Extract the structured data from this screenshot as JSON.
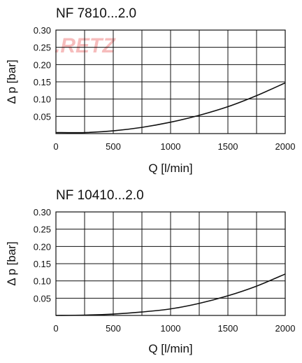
{
  "watermark": ".RETZ",
  "chart_data": [
    {
      "type": "line",
      "title": "NF 7810...2.0",
      "xlabel": "Q   [l/min]",
      "ylabel": "Δ p   [bar]",
      "xlim": [
        0,
        2000
      ],
      "ylim": [
        0,
        0.3
      ],
      "x_ticks": [
        0,
        500,
        1000,
        1500,
        2000
      ],
      "y_ticks": [
        0.05,
        0.1,
        0.15,
        0.2,
        0.25,
        0.3
      ],
      "x_tick_labels": [
        "0",
        "500",
        "1000",
        "1500",
        "2000"
      ],
      "y_tick_labels": [
        "0.05",
        "0.10",
        "0.15",
        "0.20",
        "0.25",
        "0.30"
      ],
      "x_grid": [
        0,
        250,
        500,
        750,
        1000,
        1250,
        1500,
        1750,
        2000
      ],
      "y_grid": [
        0,
        0.05,
        0.1,
        0.15,
        0.2,
        0.25,
        0.3
      ],
      "grid": true,
      "series": [
        {
          "x": [
            0,
            250,
            500,
            750,
            1000,
            1250,
            1500,
            1750,
            2000
          ],
          "y": [
            0.003,
            0.003,
            0.008,
            0.018,
            0.033,
            0.053,
            0.078,
            0.11,
            0.147
          ]
        }
      ]
    },
    {
      "type": "line",
      "title": "NF 10410...2.0",
      "xlabel": "Q   [l/min]",
      "ylabel": "Δ p   [bar]",
      "xlim": [
        0,
        2000
      ],
      "ylim": [
        0,
        0.3
      ],
      "x_ticks": [
        0,
        500,
        1000,
        1500,
        2000
      ],
      "y_ticks": [
        0.05,
        0.1,
        0.15,
        0.2,
        0.25,
        0.3
      ],
      "x_tick_labels": [
        "0",
        "500",
        "1000",
        "1500",
        "2000"
      ],
      "y_tick_labels": [
        "0.05",
        "0.10",
        "0.15",
        "0.20",
        "0.25",
        "0.30"
      ],
      "x_grid": [
        0,
        250,
        500,
        750,
        1000,
        1250,
        1500,
        1750,
        2000
      ],
      "y_grid": [
        0,
        0.05,
        0.1,
        0.15,
        0.2,
        0.25,
        0.3
      ],
      "grid": true,
      "series": [
        {
          "x": [
            0,
            250,
            500,
            750,
            1000,
            1250,
            1500,
            1750,
            2000
          ],
          "y": [
            0.0,
            0.001,
            0.004,
            0.01,
            0.019,
            0.035,
            0.057,
            0.085,
            0.12
          ]
        }
      ]
    }
  ]
}
